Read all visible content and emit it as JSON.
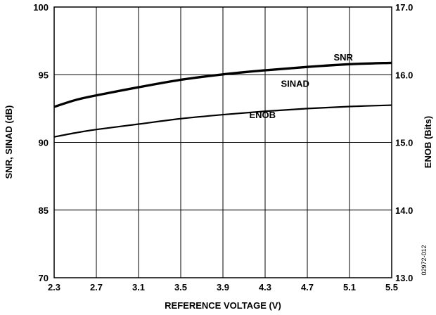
{
  "chart_data": {
    "type": "line",
    "xlabel": "REFERENCE VOLTAGE (V)",
    "ylabel": "SNR, SINAD (dB)",
    "y2label": "ENOB (Bits)",
    "figure_id": "02972-012",
    "xlim": [
      2.3,
      5.5
    ],
    "x_ticks": [
      "2.3",
      "2.7",
      "3.1",
      "3.5",
      "3.9",
      "4.3",
      "4.7",
      "5.1",
      "5.5"
    ],
    "y_left_ticks": [
      "70",
      "85",
      "90",
      "95",
      "100"
    ],
    "y_right_ticks": [
      "13.0",
      "14.0",
      "15.0",
      "16.0",
      "17.0"
    ],
    "y_right_lim": [
      13.0,
      17.0
    ],
    "grid": true,
    "series": [
      {
        "name": "SNR",
        "axis": "right",
        "x": [
          2.3,
          2.5,
          2.7,
          3.1,
          3.5,
          3.9,
          4.3,
          4.7,
          5.1,
          5.5
        ],
        "values": [
          15.53,
          15.63,
          15.7,
          15.82,
          15.93,
          16.01,
          16.07,
          16.12,
          16.16,
          16.18
        ]
      },
      {
        "name": "SINAD",
        "axis": "right",
        "x": [
          2.3,
          2.5,
          2.7,
          3.1,
          3.5,
          3.9,
          4.3,
          4.7,
          5.1,
          5.5
        ],
        "values": [
          15.52,
          15.62,
          15.69,
          15.81,
          15.92,
          16.0,
          16.06,
          16.11,
          16.15,
          16.17
        ]
      },
      {
        "name": "ENOB",
        "axis": "right",
        "x": [
          2.3,
          2.5,
          2.7,
          3.1,
          3.5,
          3.9,
          4.3,
          4.7,
          5.1,
          5.5
        ],
        "values": [
          15.08,
          15.14,
          15.19,
          15.27,
          15.35,
          15.41,
          15.46,
          15.5,
          15.53,
          15.55
        ]
      }
    ],
    "annotations": [
      {
        "text": "SNR",
        "x": 4.95,
        "y": 16.21
      },
      {
        "text": "SINAD",
        "x": 4.45,
        "y": 15.82
      },
      {
        "text": "ENOB",
        "x": 4.15,
        "y": 15.36
      }
    ]
  }
}
